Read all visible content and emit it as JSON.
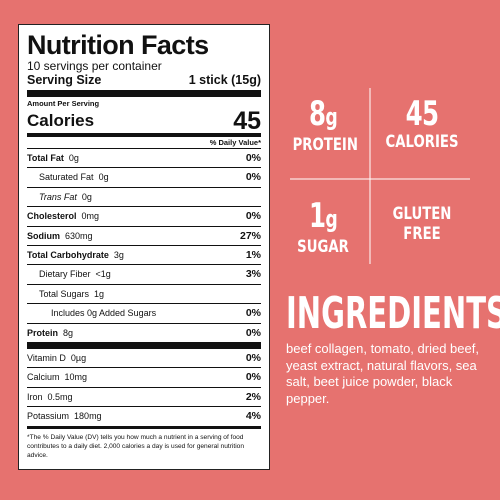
{
  "label": {
    "title": "Nutrition Facts",
    "servings": "10 servings per container",
    "serving_size_label": "Serving Size",
    "serving_size_value": "1 stick (15g)",
    "amount_per_serving": "Amount Per Serving",
    "calories_label": "Calories",
    "calories_value": "45",
    "dv_header": "% Daily Value*",
    "rows": [
      {
        "name": "Total Fat",
        "amount": "0g",
        "dv": "0%"
      },
      {
        "name": "Saturated Fat",
        "amount": "0g",
        "dv": "0%"
      },
      {
        "name": "Trans Fat",
        "amount": "0g",
        "dv": ""
      },
      {
        "name": "Cholesterol",
        "amount": "0mg",
        "dv": "0%"
      },
      {
        "name": "Sodium",
        "amount": "630mg",
        "dv": "27%"
      },
      {
        "name": "Total Carbohydrate",
        "amount": "3g",
        "dv": "1%"
      },
      {
        "name": "Dietary Fiber",
        "amount": "<1g",
        "dv": "3%"
      },
      {
        "name": "Total Sugars",
        "amount": "1g",
        "dv": ""
      },
      {
        "name": "Includes 0g Added Sugars",
        "amount": "",
        "dv": "0%"
      },
      {
        "name": "Protein",
        "amount": "8g",
        "dv": "0%"
      },
      {
        "name": "Vitamin D",
        "amount": "0µg",
        "dv": "0%"
      },
      {
        "name": "Calcium",
        "amount": "10mg",
        "dv": "0%"
      },
      {
        "name": "Iron",
        "amount": "0.5mg",
        "dv": "2%"
      },
      {
        "name": "Potassium",
        "amount": "180mg",
        "dv": "4%"
      }
    ],
    "footnote": "*The % Daily Value (DV) tells you how much a nutrient in a serving of food contributes to a daily diet. 2,000 calories a day is used for general nutrition advice."
  },
  "highlights": {
    "protein_value": "8",
    "protein_unit": "g",
    "protein_label": "PROTEIN",
    "calories_value": "45",
    "calories_label": "CALORIES",
    "sugar_value": "1",
    "sugar_unit": "g",
    "sugar_label": "SUGAR",
    "gluten_line1": "GLUTEN",
    "gluten_line2": "FREE"
  },
  "ingredients": {
    "title": "INGREDIENTS",
    "text": "beef collagen, tomato, dried beef, yeast extract, natural flavors, sea salt, beet juice powder, black pepper."
  },
  "colors": {
    "background": "#e6726f",
    "panel": "#ffffff",
    "text_on_background": "#ffffff"
  }
}
